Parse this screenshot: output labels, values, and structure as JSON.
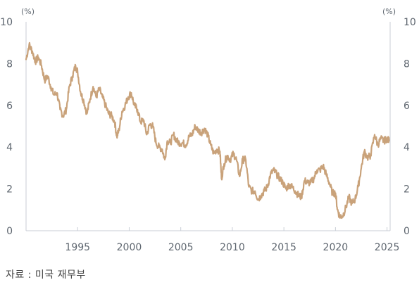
{
  "chart_data": {
    "type": "line",
    "unit_left": "(%)",
    "unit_right": "(%)",
    "xlim": [
      1990,
      2025.3
    ],
    "ylim": [
      0,
      10
    ],
    "yticks": [
      0,
      2,
      4,
      6,
      8,
      10
    ],
    "xticks": [
      1995,
      2000,
      2005,
      2010,
      2015,
      2020,
      2025
    ],
    "grid": false,
    "color": "#c9a27a",
    "series": [
      {
        "x": [
          1990.0,
          1990.3,
          1990.6,
          1990.9,
          1991.2,
          1991.5,
          1991.8,
          1992.1,
          1992.4,
          1992.7,
          1993.0,
          1993.3,
          1993.6,
          1993.9,
          1994.2,
          1994.5,
          1994.8,
          1995.0,
          1995.3,
          1995.6,
          1995.9,
          1996.2,
          1996.5,
          1996.8,
          1997.1,
          1997.4,
          1997.7,
          1998.0,
          1998.3,
          1998.6,
          1998.8,
          1999.0,
          1999.3,
          1999.6,
          1999.9,
          2000.2,
          2000.5,
          2000.8,
          2001.1,
          2001.4,
          2001.7,
          2002.0,
          2002.3,
          2002.6,
          2002.9,
          2003.2,
          2003.45,
          2003.7,
          2004.0,
          2004.3,
          2004.6,
          2004.9,
          2005.2,
          2005.5,
          2005.8,
          2006.1,
          2006.4,
          2006.7,
          2007.0,
          2007.3,
          2007.6,
          2007.9,
          2008.2,
          2008.5,
          2008.8,
          2008.95,
          2009.2,
          2009.5,
          2009.8,
          2010.1,
          2010.4,
          2010.7,
          2011.0,
          2011.3,
          2011.6,
          2011.9,
          2012.2,
          2012.5,
          2012.8,
          2013.1,
          2013.4,
          2013.7,
          2014.0,
          2014.3,
          2014.6,
          2014.9,
          2015.2,
          2015.5,
          2015.8,
          2016.1,
          2016.4,
          2016.7,
          2017.0,
          2017.3,
          2017.6,
          2017.9,
          2018.2,
          2018.5,
          2018.8,
          2019.1,
          2019.4,
          2019.7,
          2020.0,
          2020.2,
          2020.4,
          2020.7,
          2021.0,
          2021.3,
          2021.6,
          2021.9,
          2022.2,
          2022.5,
          2022.8,
          2023.1,
          2023.4,
          2023.8,
          2024.1,
          2024.4,
          2024.7,
          2025.0,
          2025.2
        ],
        "y": [
          8.2,
          8.9,
          8.6,
          8.1,
          8.3,
          7.9,
          7.2,
          7.4,
          6.9,
          6.5,
          6.6,
          5.8,
          5.5,
          5.8,
          6.9,
          7.4,
          7.9,
          7.6,
          6.6,
          6.2,
          5.6,
          6.3,
          6.9,
          6.4,
          6.8,
          6.4,
          6.0,
          5.6,
          5.5,
          5.2,
          4.5,
          4.8,
          5.7,
          6.0,
          6.4,
          6.6,
          6.0,
          5.8,
          5.2,
          5.3,
          4.6,
          5.1,
          5.0,
          4.2,
          4.0,
          3.9,
          3.4,
          4.3,
          4.2,
          4.6,
          4.3,
          4.2,
          4.2,
          4.1,
          4.5,
          4.6,
          5.0,
          4.8,
          4.7,
          4.9,
          4.6,
          4.1,
          3.7,
          3.9,
          3.8,
          2.5,
          3.2,
          3.6,
          3.4,
          3.7,
          3.4,
          2.6,
          3.4,
          3.4,
          2.1,
          1.9,
          1.9,
          1.5,
          1.7,
          1.9,
          2.1,
          2.7,
          2.9,
          2.7,
          2.5,
          2.3,
          2.0,
          2.2,
          2.1,
          1.9,
          1.7,
          1.6,
          2.4,
          2.3,
          2.3,
          2.5,
          2.9,
          2.9,
          3.1,
          2.7,
          2.3,
          1.8,
          1.8,
          1.0,
          0.7,
          0.7,
          1.1,
          1.6,
          1.3,
          1.5,
          2.1,
          3.0,
          3.8,
          3.5,
          3.6,
          4.6,
          4.1,
          4.4,
          4.3,
          4.4,
          4.3
        ]
      }
    ]
  },
  "source": "자료 : 미국 재무부"
}
